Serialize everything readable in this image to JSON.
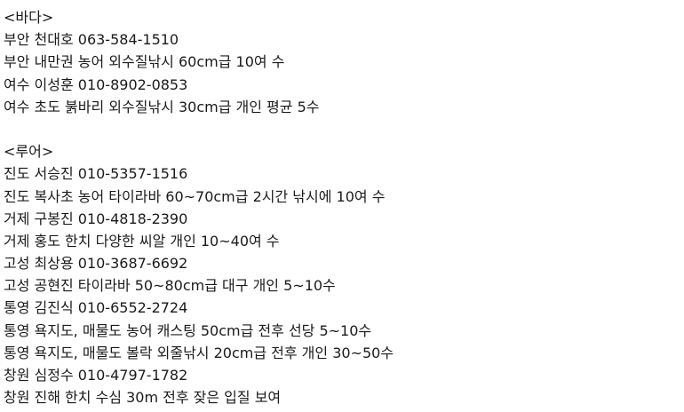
{
  "sections": [
    {
      "heading": "<바다>",
      "lines": [
        "부안 천대호 063-584-1510",
        "부안 내만권 농어 외수질낚시 60cm급 10여 수",
        "여수 이성훈 010-8902-0853",
        "여수 초도 붉바리 외수질낚시 30cm급 개인 평균 5수"
      ]
    },
    {
      "heading": "<루어>",
      "lines": [
        "진도 서승진 010-5357-1516",
        "진도 복사초 농어 타이라바 60~70cm급 2시간 낚시에 10여 수",
        "거제 구봉진 010-4818-2390",
        "거제 홍도 한치 다양한 씨알 개인 10~40여 수",
        "고성 최상용 010-3687-6692",
        "고성 공현진 타이라바 50~80cm급 대구 개인 5~10수",
        "통영 김진식 010-6552-2724",
        "통영 욕지도, 매물도 농어 캐스팅 50cm급 전후 선당 5~10수",
        "통영 욕지도, 매물도 볼락 외줄낚시 20cm급 전후 개인 30~50수",
        "창원 심정수 010-4797-1782",
        "창원 진해 한치 수심 30m 전후 잦은 입질 보여"
      ]
    }
  ]
}
